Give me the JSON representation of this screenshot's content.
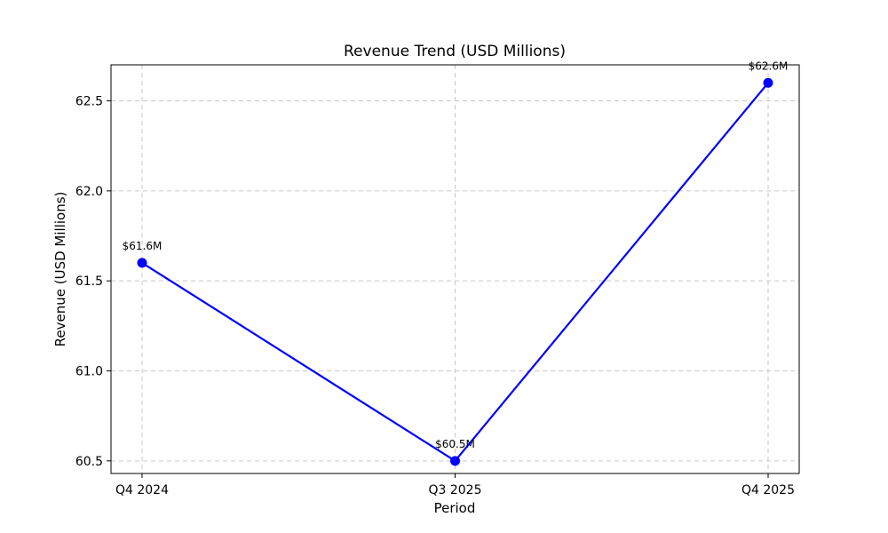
{
  "chart_data": {
    "type": "line",
    "title": "Revenue Trend (USD Millions)",
    "xlabel": "Period",
    "ylabel": "Revenue (USD Millions)",
    "categories": [
      "Q4 2024",
      "Q3 2025",
      "Q4 2025"
    ],
    "series": [
      {
        "values": [
          61.6,
          60.5,
          62.6
        ],
        "data_labels": [
          "$61.6M",
          "$60.5M",
          "$62.6M"
        ],
        "color": "#0000ff",
        "marker": "circle"
      }
    ],
    "ylim": [
      60.43,
      62.7
    ],
    "yticks": [
      60.5,
      61.0,
      61.5,
      62.0,
      62.5
    ],
    "ytick_labels": [
      "60.5",
      "61.0",
      "61.5",
      "62.0",
      "62.5"
    ],
    "grid": true,
    "legend": "none"
  }
}
